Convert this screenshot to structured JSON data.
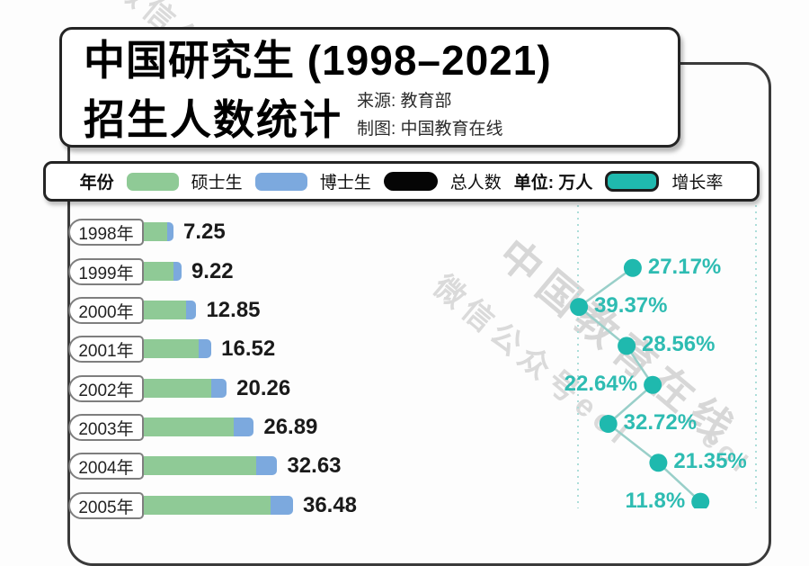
{
  "title": {
    "line1": "中国研究生 (1998–2021)",
    "line2": "招生人数统计",
    "source_label": "来源: 教育部",
    "credit_label": "制图: 中国教育在线"
  },
  "legend": {
    "year_label": "年份",
    "masters_label": "硕士生",
    "doctoral_label": "博士生",
    "total_label": "总人数",
    "unit_label": "单位: 万人",
    "growth_label": "增长率"
  },
  "watermarks": [
    "微信公众号eol",
    "中国教育在线",
    "微信公众号eol",
    "eol"
  ],
  "colors": {
    "masters_green": "#8fca96",
    "doctoral_blue": "#7ca9de",
    "total_black": "#050505",
    "growth_teal": "#1fb9ae",
    "growth_text": "#2ebcb2",
    "growth_line": "#99cfc9",
    "grid_dotted": "#addeda",
    "frame_border": "#3a3a3a"
  },
  "chart_data": {
    "type": "bar",
    "title": "中国研究生 (1998–2021) 招生人数统计",
    "unit": "万人",
    "legend_position": "top",
    "categories": [
      "1998年",
      "1999年",
      "2000年",
      "2001年",
      "2002年",
      "2003年",
      "2004年",
      "2005年"
    ],
    "totals": [
      7.25,
      9.22,
      12.85,
      16.52,
      20.26,
      26.89,
      32.63,
      36.48
    ],
    "doctoral_fraction_estimate": [
      0.21,
      0.21,
      0.2,
      0.19,
      0.19,
      0.18,
      0.16,
      0.15
    ],
    "growth": {
      "years": [
        "1999年",
        "2000年",
        "2001年",
        "2002年",
        "2003年",
        "2004年",
        "2005年"
      ],
      "values_pct": [
        27.17,
        39.37,
        28.56,
        22.64,
        32.72,
        21.35,
        11.8
      ],
      "labels": [
        "27.17%",
        "39.37%",
        "28.56%",
        "22.64%",
        "32.72%",
        "21.35%",
        "11.8%"
      ],
      "label_side": [
        "right",
        "right",
        "right",
        "left",
        "right",
        "right",
        "left"
      ]
    }
  }
}
